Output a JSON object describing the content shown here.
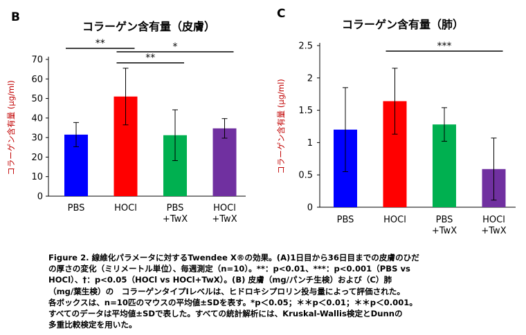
{
  "chart_data": [
    {
      "type": "bar",
      "panel": "B",
      "title": "コラーゲン含有量（皮膚）",
      "ylabel": "コラーゲン含有量 (μg/ml)",
      "ylim": [
        0,
        70
      ],
      "yticks": [
        0,
        10,
        20,
        30,
        40,
        50,
        60,
        70
      ],
      "tick_labels": [
        "0",
        "10",
        "20",
        "30",
        "40",
        "50",
        "60",
        "70"
      ],
      "categories": [
        [
          "PBS"
        ],
        [
          "HOCl"
        ],
        [
          "PBS",
          "+TwX"
        ],
        [
          "HOCl",
          "+TwX"
        ]
      ],
      "values": [
        31.5,
        51,
        31.2,
        34.7
      ],
      "errors": [
        6.2,
        14.5,
        13,
        5
      ],
      "colors": [
        "#0000ff",
        "#ff0000",
        "#00b050",
        "#7030a0"
      ],
      "significance": [
        {
          "from": 0,
          "to": 1,
          "label": "**"
        },
        {
          "from": 1,
          "to": 3,
          "label": "*"
        },
        {
          "from": 1,
          "to": 2,
          "label": "**"
        }
      ]
    },
    {
      "type": "bar",
      "panel": "C",
      "title": "コラーゲン含有量（肺）",
      "ylabel": "コラーゲン含有量 (μg/ml)",
      "ylim": [
        0,
        2.5
      ],
      "yticks": [
        0,
        0.5,
        1,
        1.5,
        2,
        2.5
      ],
      "tick_labels": [
        "0",
        "0.5",
        "1",
        "1.5",
        "2",
        "2.5"
      ],
      "categories": [
        [
          "PBS"
        ],
        [
          "HOCl"
        ],
        [
          "PBS",
          "+TwX"
        ],
        [
          "HOCl",
          "+TwX"
        ]
      ],
      "values": [
        1.2,
        1.64,
        1.28,
        0.59
      ],
      "errors": [
        0.65,
        0.51,
        0.26,
        0.48
      ],
      "colors": [
        "#0000ff",
        "#ff0000",
        "#00b050",
        "#7030a0"
      ],
      "significance": [
        {
          "from": 1,
          "to": 3,
          "label": "***"
        }
      ]
    }
  ],
  "caption": {
    "lines": [
      "Figure 2. 線維化パラメータに対するTwendee X®の効果。(A)1日目から36日目までの皮膚のひだ",
      "の厚さの変化（ミリメートル単位）、毎週測定（n=10）。**：p<0.01、***：p<0.001（PBS vs",
      "HOCl）、†：p<0.05（HOCl vs HOCl+TwX）。(B) 皮膚（mg/パンチ生検）および（C）肺",
      "（mg/葉生検）の　コラーゲンタイプIレベルは、ヒドロキシプロリン投与量によって評価された。",
      "各ボックスは、n=10匹のマウスの平均値±SDを表す。*p＜0.05；＊＊p＜0.01；＊＊p＜0.001。",
      "すべてのデータは平均値±SDで表した。すべての統計解析には、Kruskal-Wallis検定とDunnの",
      "多重比較検定を用いた。"
    ]
  }
}
